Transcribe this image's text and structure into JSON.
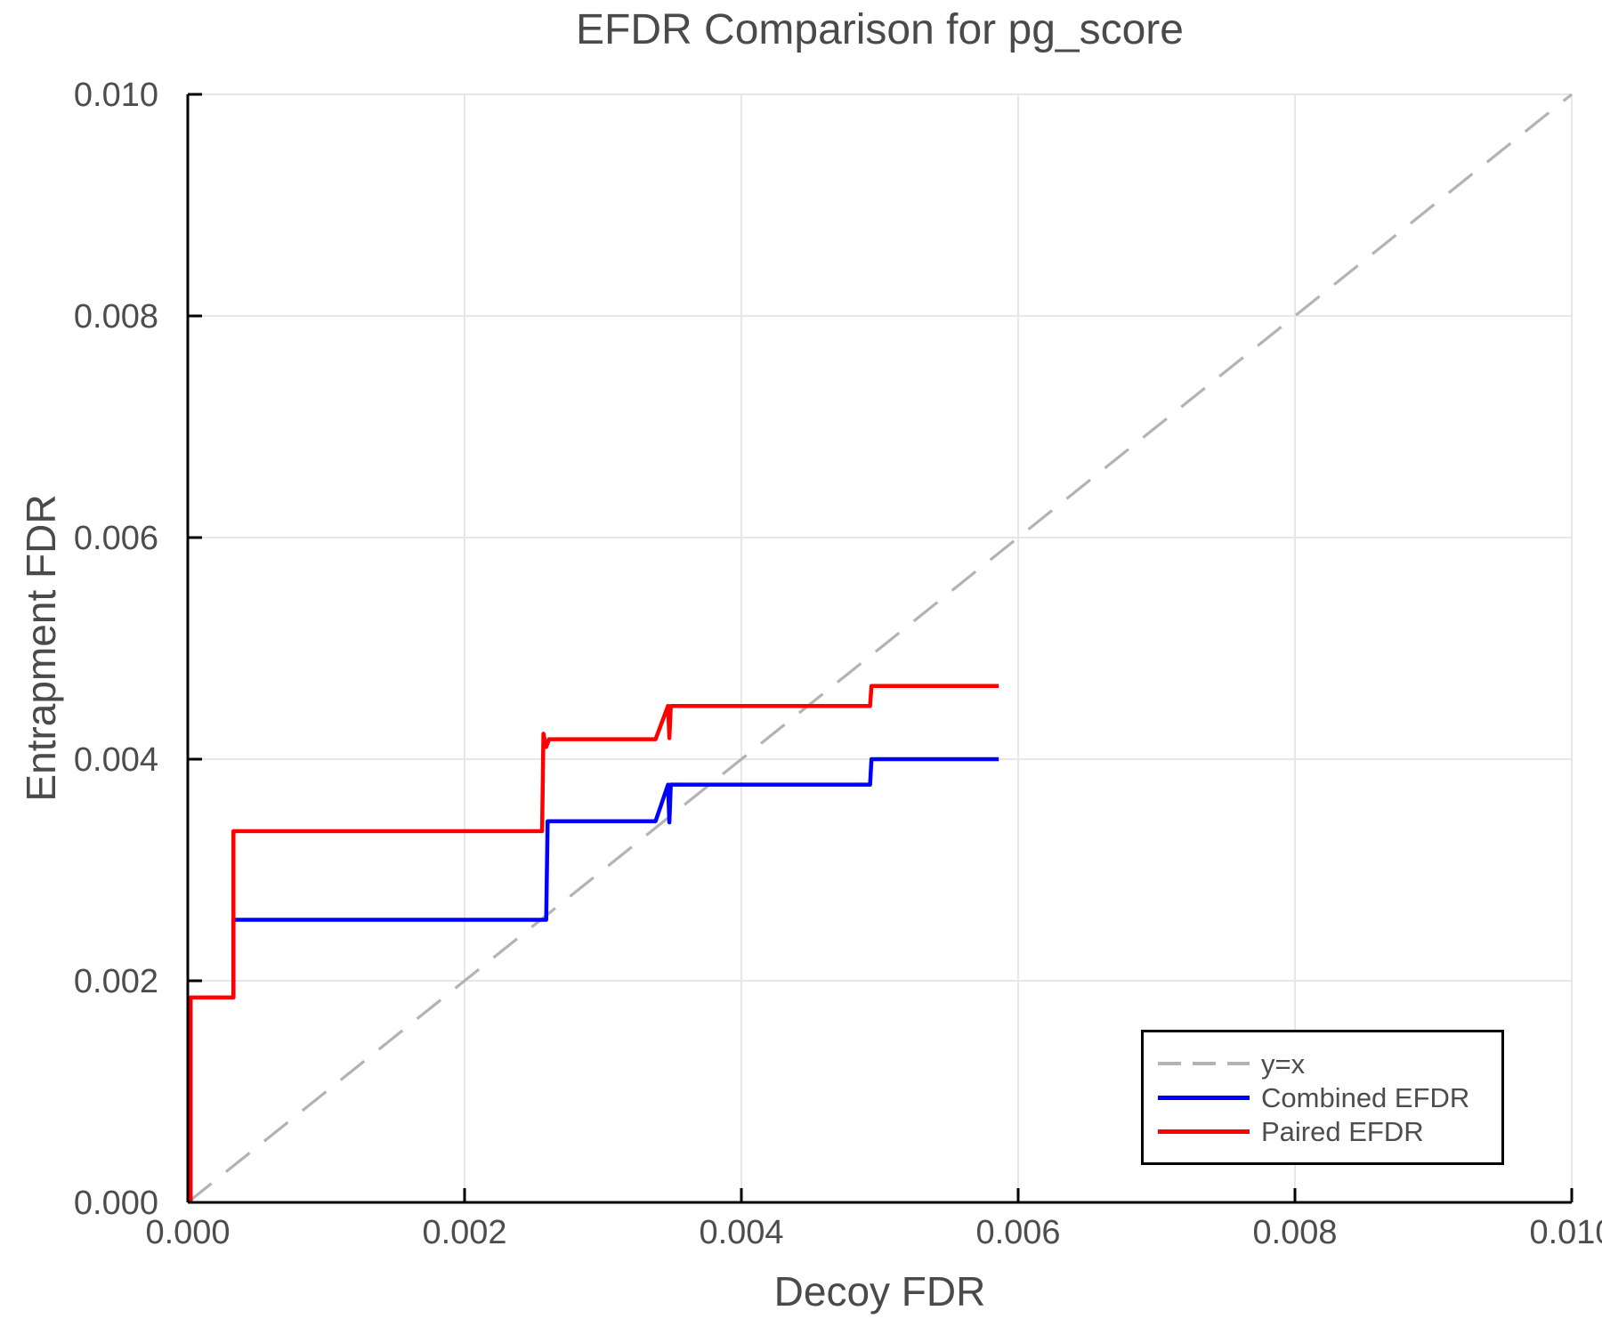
{
  "figure": {
    "title": "EFDR Comparison for pg_score",
    "xlabel": "Decoy FDR",
    "ylabel": "Entrapment FDR"
  },
  "colors": {
    "grid": "#e7e7e7",
    "spine": "#000000",
    "tick_text": "#4d4d4d",
    "title_text": "#4a4a4a",
    "reference": "#b3b3b3",
    "combined": "#0000ff",
    "paired": "#ff0000",
    "legend_border": "#000000"
  },
  "chart_data": {
    "type": "line",
    "title": "EFDR Comparison for pg_score",
    "xlabel": "Decoy FDR",
    "ylabel": "Entrapment FDR",
    "xlim": [
      0.0,
      0.01
    ],
    "ylim": [
      0.0,
      0.01
    ],
    "xtick_values": [
      0.0,
      0.002,
      0.004,
      0.006,
      0.008,
      0.01
    ],
    "xtick_labels": [
      "0.000",
      "0.002",
      "0.004",
      "0.006",
      "0.008",
      "0.010"
    ],
    "ytick_values": [
      0.0,
      0.002,
      0.004,
      0.006,
      0.008,
      0.01
    ],
    "ytick_labels": [
      "0.000",
      "0.002",
      "0.004",
      "0.006",
      "0.008",
      "0.010"
    ],
    "grid": true,
    "legend_position": "lower right",
    "reference_line": {
      "name": "y=x",
      "style": "dashed",
      "color": "#b3b3b3",
      "from": [
        0.0,
        0.0
      ],
      "to": [
        0.01,
        0.01
      ]
    },
    "series": [
      {
        "name": "Combined EFDR",
        "color": "#0000ff",
        "points": [
          [
            2e-05,
            0.0
          ],
          [
            2e-05,
            0.00185
          ],
          [
            0.00033,
            0.00185
          ],
          [
            0.00033,
            0.00255
          ],
          [
            0.00259,
            0.00255
          ],
          [
            0.0026,
            0.00344
          ],
          [
            0.00338,
            0.00344
          ],
          [
            0.00347,
            0.00377
          ],
          [
            0.00348,
            0.00343
          ],
          [
            0.00349,
            0.00377
          ],
          [
            0.00493,
            0.00377
          ],
          [
            0.00494,
            0.004
          ],
          [
            0.00586,
            0.004
          ]
        ]
      },
      {
        "name": "Paired EFDR",
        "color": "#ff0000",
        "points": [
          [
            2e-05,
            0.0
          ],
          [
            2e-05,
            0.00185
          ],
          [
            0.00033,
            0.00185
          ],
          [
            0.00033,
            0.00335
          ],
          [
            0.00256,
            0.00335
          ],
          [
            0.00257,
            0.00423
          ],
          [
            0.00259,
            0.00411
          ],
          [
            0.00261,
            0.00418
          ],
          [
            0.00338,
            0.00418
          ],
          [
            0.00347,
            0.00448
          ],
          [
            0.00348,
            0.00419
          ],
          [
            0.00349,
            0.00448
          ],
          [
            0.00493,
            0.00448
          ],
          [
            0.00494,
            0.00466
          ],
          [
            0.00586,
            0.00466
          ]
        ]
      }
    ],
    "legend": [
      {
        "label": "y=x",
        "color": "#b3b3b3",
        "dashed": true
      },
      {
        "label": "Combined EFDR",
        "color": "#0000ff",
        "dashed": false
      },
      {
        "label": "Paired EFDR",
        "color": "#ff0000",
        "dashed": false
      }
    ]
  }
}
